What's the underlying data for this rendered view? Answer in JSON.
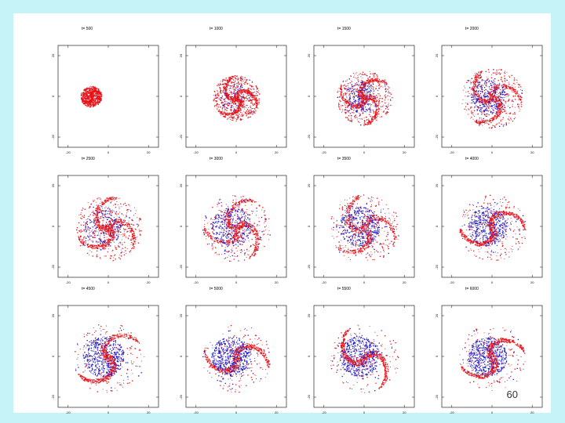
{
  "slide": {
    "page_number": "60"
  },
  "colors": {
    "blue": "#1c18c8",
    "red": "#e8141a",
    "axis": "#000000",
    "background": "#c6f3f7"
  },
  "panels": [
    {
      "t_label": "t= 500",
      "ytick_top": "20",
      "ytick_mid": "0",
      "ytick_bot": "-20",
      "xtick_left": "-20",
      "xtick_mid": "0",
      "xtick_right": "20",
      "blob_scale": 0.25,
      "blue_frac": 0.0,
      "arms": 2,
      "rot": 0.8
    },
    {
      "t_label": "t= 1000",
      "ytick_top": "20",
      "ytick_mid": "0",
      "ytick_bot": "-20",
      "xtick_left": "-20",
      "xtick_mid": "0",
      "xtick_right": "20",
      "blob_scale": 0.55,
      "blue_frac": 0.08,
      "arms": 3,
      "rot": 0.3
    },
    {
      "t_label": "t= 1500",
      "ytick_top": "20",
      "ytick_mid": "0",
      "ytick_bot": "-20",
      "xtick_left": "-20",
      "xtick_mid": "0",
      "xtick_right": "20",
      "blob_scale": 0.65,
      "blue_frac": 0.18,
      "arms": 3,
      "rot": 1.4
    },
    {
      "t_label": "t= 2000",
      "ytick_top": "20",
      "ytick_mid": "0",
      "ytick_bot": "-20",
      "xtick_left": "-20",
      "xtick_mid": "0",
      "xtick_right": "20",
      "blob_scale": 0.72,
      "blue_frac": 0.22,
      "arms": 3,
      "rot": 2.1
    },
    {
      "t_label": "t= 2500",
      "ytick_top": "20",
      "ytick_mid": "0",
      "ytick_bot": "-20",
      "xtick_left": "-20",
      "xtick_mid": "0",
      "xtick_right": "20",
      "blob_scale": 0.78,
      "blue_frac": 0.2,
      "arms": 3,
      "rot": 0.6
    },
    {
      "t_label": "t= 3000",
      "ytick_top": "20",
      "ytick_mid": "0",
      "ytick_bot": "-20",
      "xtick_left": "-20",
      "xtick_mid": "0",
      "xtick_right": "20",
      "blob_scale": 0.8,
      "blue_frac": 0.28,
      "arms": 3,
      "rot": 1.0
    },
    {
      "t_label": "t= 3500",
      "ytick_top": "20",
      "ytick_mid": "0",
      "ytick_bot": "-20",
      "xtick_left": "-20",
      "xtick_mid": "0",
      "xtick_right": "20",
      "blob_scale": 0.82,
      "blue_frac": 0.32,
      "arms": 3,
      "rot": 2.4
    },
    {
      "t_label": "t= 4000",
      "ytick_top": "20",
      "ytick_mid": "0",
      "ytick_bot": "-20",
      "xtick_left": "-20",
      "xtick_mid": "0",
      "xtick_right": "20",
      "blob_scale": 0.8,
      "blue_frac": 0.35,
      "arms": 2,
      "rot": 0.9
    },
    {
      "t_label": "t= 4500",
      "ytick_top": "20",
      "ytick_mid": "0",
      "ytick_bot": "-20",
      "xtick_left": "-20",
      "xtick_mid": "0",
      "xtick_right": "20",
      "blob_scale": 0.84,
      "blue_frac": 0.38,
      "arms": 2,
      "rot": 0.4
    },
    {
      "t_label": "t= 5000",
      "ytick_top": "20",
      "ytick_mid": "0",
      "ytick_bot": "-20",
      "xtick_left": "-20",
      "xtick_mid": "0",
      "xtick_right": "20",
      "blob_scale": 0.82,
      "blue_frac": 0.4,
      "arms": 2,
      "rot": 1.2
    },
    {
      "t_label": "t= 5500",
      "ytick_top": "20",
      "ytick_mid": "0",
      "ytick_bot": "-20",
      "xtick_left": "-20",
      "xtick_mid": "0",
      "xtick_right": "20",
      "blob_scale": 0.82,
      "blue_frac": 0.4,
      "arms": 2,
      "rot": 2.0
    },
    {
      "t_label": "t= 6000",
      "ytick_top": "20",
      "ytick_mid": "0",
      "ytick_bot": "-20",
      "xtick_left": "-20",
      "xtick_mid": "0",
      "xtick_right": "20",
      "blob_scale": 0.8,
      "blue_frac": 0.42,
      "arms": 2,
      "rot": 0.7
    }
  ]
}
